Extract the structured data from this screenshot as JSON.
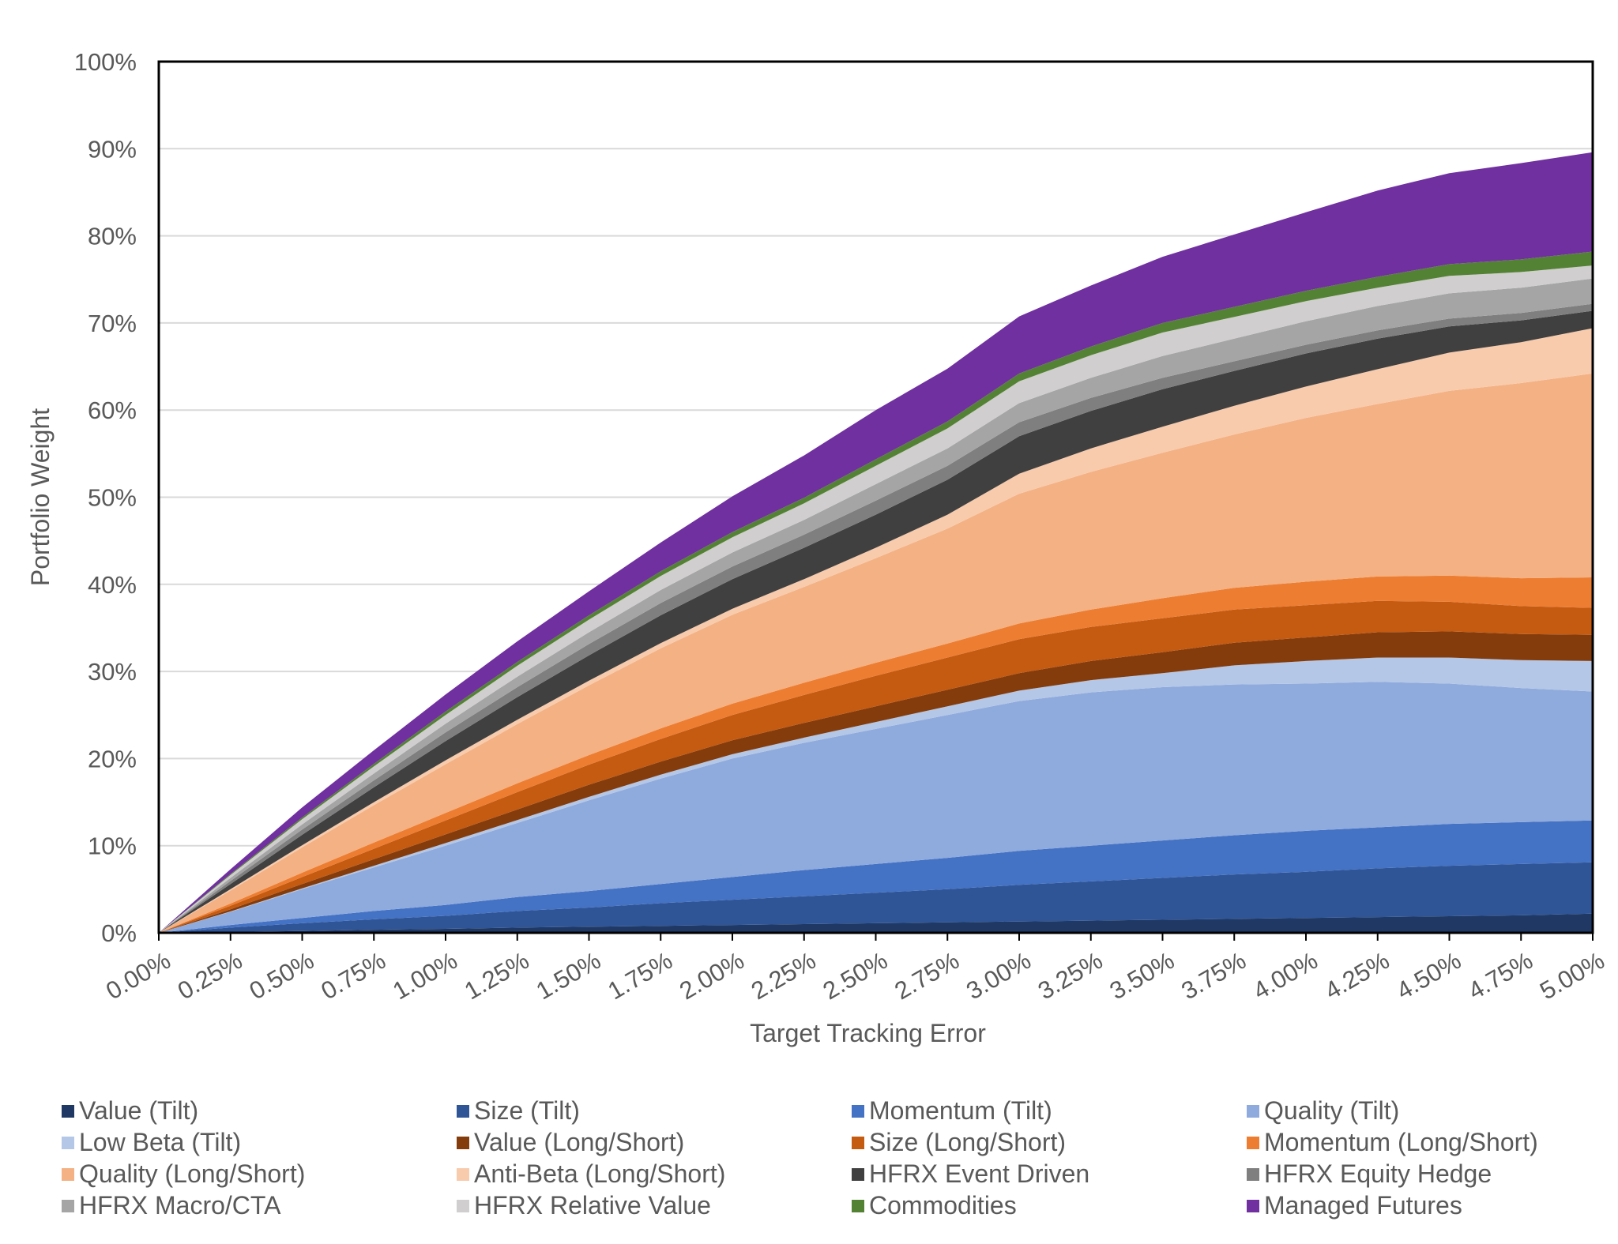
{
  "chart_data": {
    "type": "area",
    "stacked": true,
    "xlabel": "Target Tracking Error",
    "ylabel": "Portfolio Weight",
    "x": [
      "0.00%",
      "0.25%",
      "0.50%",
      "0.75%",
      "1.00%",
      "1.25%",
      "1.50%",
      "1.75%",
      "2.00%",
      "2.25%",
      "2.50%",
      "2.75%",
      "3.00%",
      "3.25%",
      "3.50%",
      "3.75%",
      "4.00%",
      "4.25%",
      "4.50%",
      "4.75%",
      "5.00%"
    ],
    "y_ticks": [
      "0%",
      "10%",
      "20%",
      "30%",
      "40%",
      "50%",
      "60%",
      "70%",
      "80%",
      "90%",
      "100%"
    ],
    "ylim": [
      0,
      100
    ],
    "grid": true,
    "legend_position": "bottom",
    "series": [
      {
        "name": "Value (Tilt)",
        "color": "#1f3864",
        "values": [
          0,
          0.1,
          0.2,
          0.35,
          0.45,
          0.6,
          0.7,
          0.8,
          0.9,
          1.0,
          1.1,
          1.2,
          1.3,
          1.4,
          1.5,
          1.6,
          1.7,
          1.8,
          1.9,
          2.0,
          2.2
        ]
      },
      {
        "name": "Size (Tilt)",
        "color": "#2f5597",
        "values": [
          0,
          0.5,
          0.9,
          1.2,
          1.5,
          1.9,
          2.2,
          2.6,
          2.9,
          3.2,
          3.5,
          3.8,
          4.2,
          4.5,
          4.8,
          5.1,
          5.3,
          5.6,
          5.8,
          5.9,
          5.9
        ]
      },
      {
        "name": "Momentum (Tilt)",
        "color": "#4472c4",
        "values": [
          0,
          0.3,
          0.6,
          0.95,
          1.25,
          1.6,
          1.9,
          2.2,
          2.6,
          3.0,
          3.3,
          3.6,
          3.9,
          4.1,
          4.3,
          4.5,
          4.7,
          4.7,
          4.8,
          4.8,
          4.8
        ]
      },
      {
        "name": "Quality (Tilt)",
        "color": "#8faadc",
        "values": [
          0,
          1.5,
          3.3,
          5.0,
          6.8,
          8.5,
          10.4,
          12.1,
          13.6,
          14.6,
          15.5,
          16.4,
          17.2,
          17.6,
          17.6,
          17.3,
          16.9,
          16.7,
          16.1,
          15.4,
          14.8
        ]
      },
      {
        "name": "Low Beta (Tilt)",
        "color": "#b4c7e7",
        "values": [
          0,
          0.05,
          0.1,
          0.2,
          0.3,
          0.35,
          0.4,
          0.45,
          0.5,
          0.6,
          0.8,
          1.0,
          1.2,
          1.4,
          1.6,
          2.2,
          2.6,
          2.8,
          3.0,
          3.2,
          3.5
        ]
      },
      {
        "name": "Value (Long/Short)",
        "color": "#843c0c",
        "values": [
          0,
          0.25,
          0.5,
          0.75,
          1.0,
          1.2,
          1.4,
          1.5,
          1.6,
          1.7,
          1.8,
          1.9,
          2.0,
          2.2,
          2.4,
          2.6,
          2.7,
          2.9,
          3.0,
          3.0,
          3.0
        ]
      },
      {
        "name": "Size (Long/Short)",
        "color": "#c55a11",
        "values": [
          0,
          0.4,
          0.8,
          1.2,
          1.6,
          2.0,
          2.3,
          2.6,
          2.9,
          3.2,
          3.5,
          3.7,
          3.9,
          3.9,
          3.9,
          3.8,
          3.7,
          3.6,
          3.4,
          3.2,
          3.1
        ]
      },
      {
        "name": "Momentum (Long/Short)",
        "color": "#ed7d31",
        "values": [
          0,
          0.25,
          0.5,
          0.7,
          0.85,
          1.0,
          1.1,
          1.2,
          1.3,
          1.4,
          1.5,
          1.6,
          1.8,
          2.0,
          2.3,
          2.5,
          2.7,
          2.8,
          3.0,
          3.2,
          3.5
        ]
      },
      {
        "name": "Quality (Long/Short)",
        "color": "#f4b183",
        "values": [
          0,
          1.5,
          2.9,
          4.3,
          5.6,
          6.8,
          8.0,
          9.2,
          10.2,
          11.0,
          12.0,
          13.2,
          14.9,
          15.8,
          16.7,
          17.6,
          18.8,
          19.8,
          21.2,
          22.4,
          23.4
        ]
      },
      {
        "name": "Anti-Beta (Long/Short)",
        "color": "#f8cbad",
        "values": [
          0,
          0.15,
          0.25,
          0.35,
          0.45,
          0.5,
          0.55,
          0.6,
          0.7,
          0.9,
          1.2,
          1.6,
          2.3,
          2.7,
          3.0,
          3.3,
          3.6,
          4.0,
          4.4,
          4.7,
          5.2
        ]
      },
      {
        "name": "HFRX Event Driven",
        "color": "#404040",
        "values": [
          0,
          0.6,
          1.2,
          1.7,
          2.2,
          2.6,
          2.9,
          3.2,
          3.4,
          3.6,
          3.8,
          4.0,
          4.3,
          4.3,
          4.3,
          4.0,
          3.8,
          3.5,
          3.0,
          2.5,
          2.0
        ]
      },
      {
        "name": "HFRX Equity Hedge",
        "color": "#7f7f7f",
        "values": [
          0,
          0.35,
          0.6,
          0.8,
          1.0,
          1.15,
          1.3,
          1.4,
          1.45,
          1.5,
          1.6,
          1.6,
          1.6,
          1.5,
          1.3,
          1.1,
          1.0,
          0.95,
          0.9,
          0.85,
          0.8
        ]
      },
      {
        "name": "HFRX Macro/CTA",
        "color": "#a5a5a5",
        "values": [
          0,
          0.35,
          0.6,
          0.8,
          1.0,
          1.2,
          1.35,
          1.5,
          1.6,
          1.7,
          1.9,
          2.0,
          2.2,
          2.3,
          2.5,
          2.6,
          2.7,
          2.8,
          2.9,
          2.9,
          2.9
        ]
      },
      {
        "name": "HFRX Relative Value",
        "color": "#d0cece",
        "values": [
          0,
          0.35,
          0.6,
          0.8,
          1.0,
          1.25,
          1.45,
          1.6,
          1.75,
          1.9,
          2.1,
          2.3,
          2.5,
          2.6,
          2.7,
          2.5,
          2.3,
          2.1,
          2.0,
          1.8,
          1.5
        ]
      },
      {
        "name": "Commodities",
        "color": "#548235",
        "values": [
          0,
          0.1,
          0.2,
          0.3,
          0.4,
          0.45,
          0.5,
          0.55,
          0.6,
          0.65,
          0.75,
          0.8,
          0.9,
          1.0,
          1.1,
          1.15,
          1.2,
          1.25,
          1.35,
          1.45,
          1.6
        ]
      },
      {
        "name": "Managed Futures",
        "color": "#7030a0",
        "values": [
          0,
          0.55,
          1.15,
          1.55,
          1.95,
          2.35,
          2.75,
          3.3,
          4.1,
          4.85,
          5.65,
          6.05,
          6.55,
          7.0,
          7.6,
          8.3,
          9.0,
          9.9,
          10.45,
          11.05,
          11.4
        ]
      }
    ]
  }
}
